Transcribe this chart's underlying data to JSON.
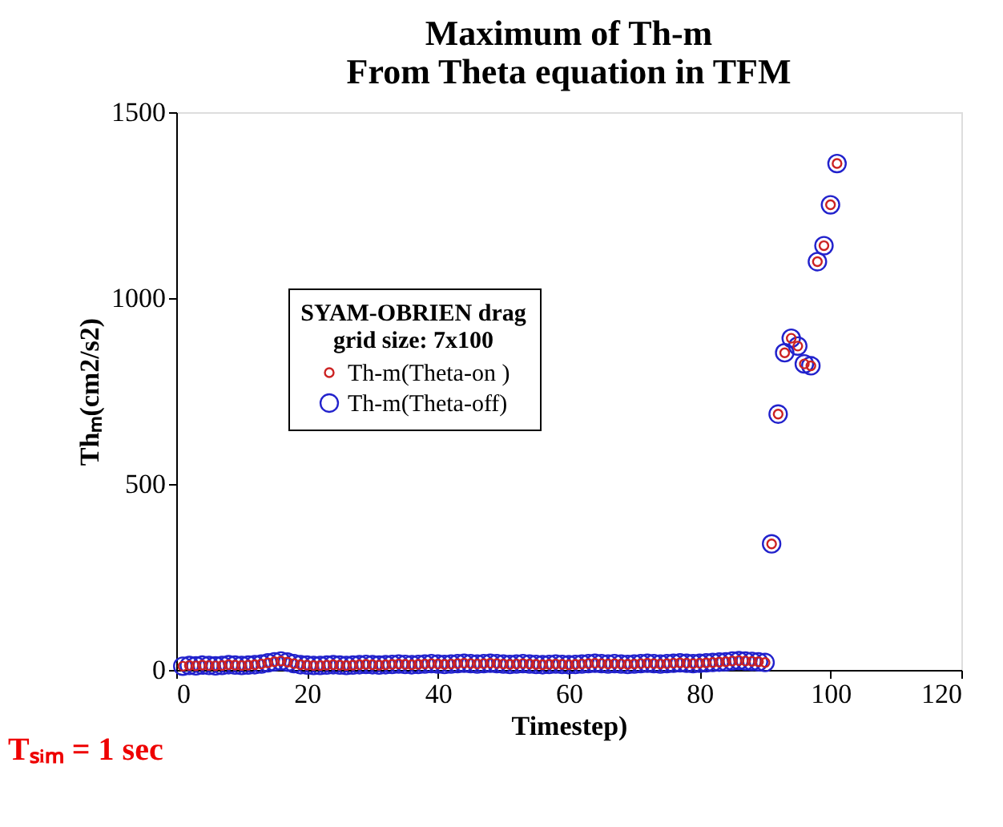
{
  "chart_data": {
    "type": "scatter",
    "title": "Maximum of Th-m\nFrom Theta equation in TFM",
    "xlabel": "Timestep)",
    "ylabel": "Thₘ(cm2/s2)",
    "legend_title": "SYAM-OBRIEN drag\ngrid size: 7x100",
    "legend": "left",
    "marker": "circle",
    "grid": false,
    "xlim": [
      0,
      120
    ],
    "xticks": [
      0,
      20,
      40,
      60,
      80,
      100,
      120
    ],
    "ylim": [
      0,
      1500
    ],
    "yticks": [
      0,
      500,
      1000,
      1500
    ],
    "annotations": [
      "Tₛᵢₘ = 1 sec"
    ],
    "x": [
      1,
      2,
      3,
      4,
      5,
      6,
      7,
      8,
      9,
      10,
      11,
      12,
      13,
      14,
      15,
      16,
      17,
      18,
      19,
      20,
      21,
      22,
      23,
      24,
      25,
      26,
      27,
      28,
      29,
      30,
      31,
      32,
      33,
      34,
      35,
      36,
      37,
      38,
      39,
      40,
      41,
      42,
      43,
      44,
      45,
      46,
      47,
      48,
      49,
      50,
      51,
      52,
      53,
      54,
      55,
      56,
      57,
      58,
      59,
      60,
      61,
      62,
      63,
      64,
      65,
      66,
      67,
      68,
      69,
      70,
      71,
      72,
      73,
      74,
      75,
      76,
      77,
      78,
      79,
      80,
      81,
      82,
      83,
      84,
      85,
      86,
      87,
      88,
      89,
      90,
      91,
      92,
      93,
      94,
      95,
      96,
      97,
      98,
      99,
      100,
      101
    ],
    "series": [
      {
        "name": "Th-m(Theta-on )",
        "color": "#cc2222",
        "values": [
          10,
          12,
          11,
          13,
          12,
          11,
          12,
          14,
          13,
          12,
          13,
          14,
          16,
          19,
          22,
          24,
          21,
          17,
          14,
          13,
          12,
          12,
          13,
          14,
          13,
          12,
          13,
          14,
          15,
          14,
          13,
          14,
          15,
          16,
          15,
          14,
          15,
          16,
          17,
          16,
          15,
          16,
          17,
          18,
          17,
          16,
          17,
          18,
          17,
          16,
          15,
          16,
          17,
          16,
          15,
          14,
          15,
          16,
          15,
          14,
          15,
          16,
          17,
          18,
          17,
          16,
          17,
          16,
          15,
          16,
          17,
          18,
          17,
          16,
          17,
          18,
          19,
          18,
          17,
          18,
          19,
          20,
          21,
          22,
          24,
          25,
          24,
          23,
          22,
          20,
          339,
          688,
          853,
          892,
          871,
          823,
          818,
          1098,
          1141,
          1251,
          1362
        ]
      },
      {
        "name": "Th-m(Theta-off)",
        "color": "#2222cc",
        "values": [
          10,
          12,
          11,
          13,
          12,
          11,
          12,
          14,
          13,
          12,
          13,
          14,
          16,
          19,
          22,
          24,
          21,
          17,
          14,
          13,
          12,
          12,
          13,
          14,
          13,
          12,
          13,
          14,
          15,
          14,
          13,
          14,
          15,
          16,
          15,
          14,
          15,
          16,
          17,
          16,
          15,
          16,
          17,
          18,
          17,
          16,
          17,
          18,
          17,
          16,
          15,
          16,
          17,
          16,
          15,
          14,
          15,
          16,
          15,
          14,
          15,
          16,
          17,
          18,
          17,
          16,
          17,
          16,
          15,
          16,
          17,
          18,
          17,
          16,
          17,
          18,
          19,
          18,
          17,
          18,
          19,
          20,
          21,
          22,
          24,
          25,
          24,
          23,
          22,
          20,
          339,
          688,
          853,
          892,
          871,
          823,
          818,
          1098,
          1141,
          1251,
          1362
        ]
      }
    ]
  }
}
